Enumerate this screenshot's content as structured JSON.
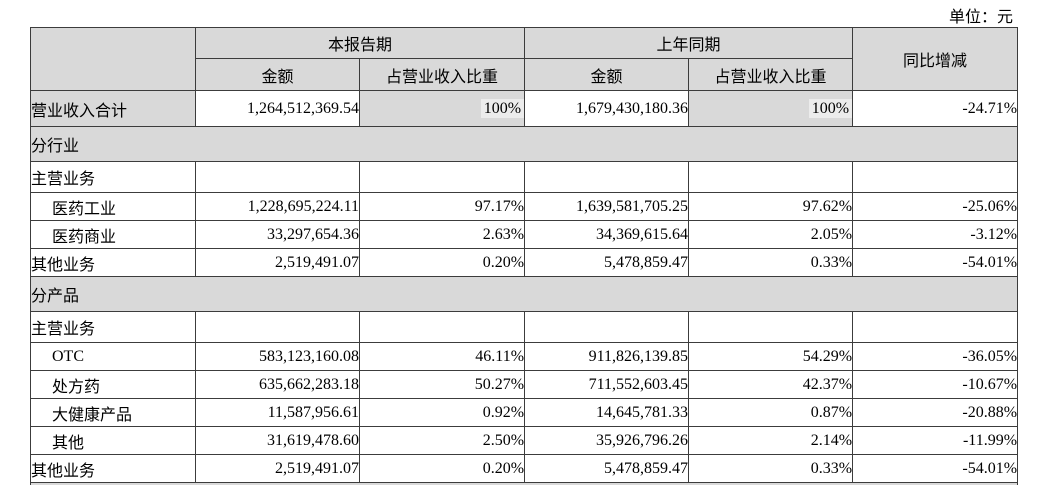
{
  "unit_label": "单位：元",
  "colors": {
    "table_shade": "#d9d9d9",
    "border": "#3c3c3c",
    "ratio_highlight": "#ececec"
  },
  "table": {
    "header": {
      "current_period": "本报告期",
      "prior_period": "上年同期",
      "yoy": "同比增减",
      "amount": "金额",
      "ratio": "占营业收入比重"
    },
    "rows": [
      {
        "type": "data",
        "cls": "row-total",
        "label": "营业收入合计",
        "indent": false,
        "label_shaded": true,
        "ratio_shaded": true,
        "current_amount": "1,264,512,369.54",
        "current_ratio": "100%",
        "prior_amount": "1,679,430,180.36",
        "prior_ratio": "100%",
        "yoy": "-24.71%"
      },
      {
        "type": "section",
        "label": "分行业"
      },
      {
        "type": "data",
        "cls": "row-sub",
        "label": "主营业务",
        "indent": false,
        "current_amount": "",
        "current_ratio": "",
        "prior_amount": "",
        "prior_ratio": "",
        "yoy": ""
      },
      {
        "type": "data",
        "label": "医药工业",
        "indent": true,
        "current_amount": "1,228,695,224.11",
        "current_ratio": "97.17%",
        "prior_amount": "1,639,581,705.25",
        "prior_ratio": "97.62%",
        "yoy": "-25.06%"
      },
      {
        "type": "data",
        "label": "医药商业",
        "indent": true,
        "current_amount": "33,297,654.36",
        "current_ratio": "2.63%",
        "prior_amount": "34,369,615.64",
        "prior_ratio": "2.05%",
        "yoy": "-3.12%"
      },
      {
        "type": "data",
        "label": "其他业务",
        "indent": false,
        "current_amount": "2,519,491.07",
        "current_ratio": "0.20%",
        "prior_amount": "5,478,859.47",
        "prior_ratio": "0.33%",
        "yoy": "-54.01%"
      },
      {
        "type": "section",
        "label": "分产品"
      },
      {
        "type": "data",
        "cls": "row-sub",
        "label": "主营业务",
        "indent": false,
        "current_amount": "",
        "current_ratio": "",
        "prior_amount": "",
        "prior_ratio": "",
        "yoy": ""
      },
      {
        "type": "data",
        "label": "OTC",
        "indent": true,
        "current_amount": "583,123,160.08",
        "current_ratio": "46.11%",
        "prior_amount": "911,826,139.85",
        "prior_ratio": "54.29%",
        "yoy": "-36.05%"
      },
      {
        "type": "data",
        "label": "处方药",
        "indent": true,
        "current_amount": "635,662,283.18",
        "current_ratio": "50.27%",
        "prior_amount": "711,552,603.45",
        "prior_ratio": "42.37%",
        "yoy": "-10.67%"
      },
      {
        "type": "data",
        "label": "大健康产品",
        "indent": true,
        "current_amount": "11,587,956.61",
        "current_ratio": "0.92%",
        "prior_amount": "14,645,781.33",
        "prior_ratio": "0.87%",
        "yoy": "-20.88%"
      },
      {
        "type": "data",
        "label": "其他",
        "indent": true,
        "current_amount": "31,619,478.60",
        "current_ratio": "2.50%",
        "prior_amount": "35,926,796.26",
        "prior_ratio": "2.14%",
        "yoy": "-11.99%"
      },
      {
        "type": "data",
        "label": "其他业务",
        "indent": false,
        "current_amount": "2,519,491.07",
        "current_ratio": "0.20%",
        "prior_amount": "5,478,859.47",
        "prior_ratio": "0.33%",
        "yoy": "-54.01%"
      },
      {
        "type": "partial"
      }
    ]
  }
}
